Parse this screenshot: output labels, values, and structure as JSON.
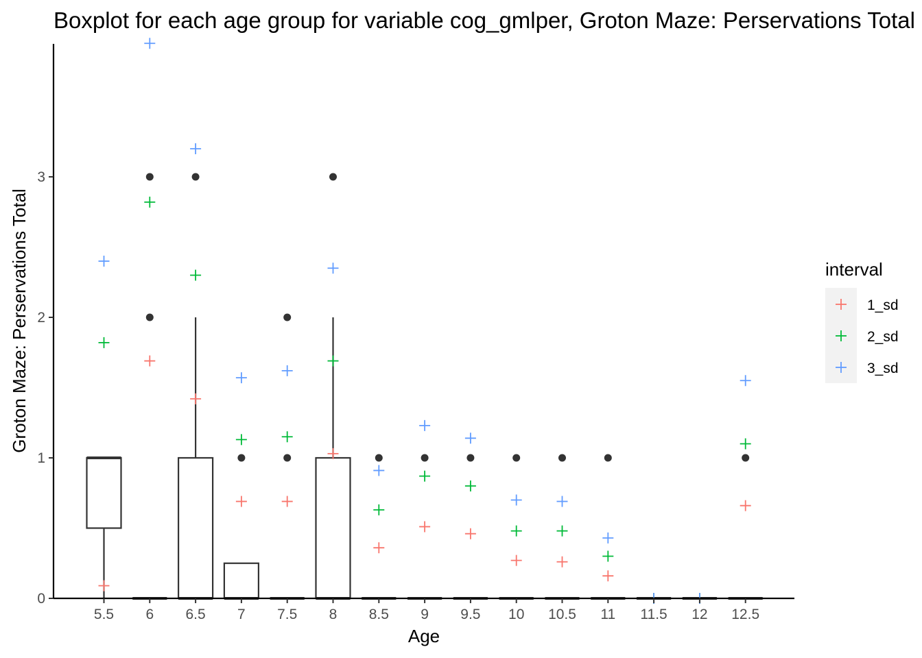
{
  "chart_data": {
    "type": "boxplot",
    "title": "Boxplot for each age group for variable cog_gmlper, Groton Maze: Perservations Total",
    "xlabel": "Age",
    "ylabel": "Groton Maze: Perservations Total",
    "categories": [
      "5.5",
      "6",
      "6.5",
      "7",
      "7.5",
      "8",
      "8.5",
      "9",
      "9.5",
      "10",
      "10.5",
      "11",
      "11.5",
      "12",
      "12.5"
    ],
    "y_ticks": [
      "0",
      "1",
      "2",
      "3"
    ],
    "ylim": [
      0,
      3.95
    ],
    "grid": false,
    "boxes": [
      {
        "category": "5.5",
        "min": 0,
        "q1": 0.5,
        "median": 1,
        "q3": 1,
        "max": 1
      },
      {
        "category": "6",
        "min": 0,
        "q1": 0,
        "median": 0,
        "q3": 0,
        "max": 0
      },
      {
        "category": "6.5",
        "min": 0,
        "q1": 0,
        "median": 0,
        "q3": 1,
        "max": 2
      },
      {
        "category": "7",
        "min": 0,
        "q1": 0,
        "median": 0,
        "q3": 0.25,
        "max": 0.25
      },
      {
        "category": "7.5",
        "min": 0,
        "q1": 0,
        "median": 0,
        "q3": 0,
        "max": 0
      },
      {
        "category": "8",
        "min": 0,
        "q1": 0,
        "median": 0,
        "q3": 1,
        "max": 2
      },
      {
        "category": "8.5",
        "min": 0,
        "q1": 0,
        "median": 0,
        "q3": 0,
        "max": 0
      },
      {
        "category": "9",
        "min": 0,
        "q1": 0,
        "median": 0,
        "q3": 0,
        "max": 0
      },
      {
        "category": "9.5",
        "min": 0,
        "q1": 0,
        "median": 0,
        "q3": 0,
        "max": 0
      },
      {
        "category": "10",
        "min": 0,
        "q1": 0,
        "median": 0,
        "q3": 0,
        "max": 0
      },
      {
        "category": "10.5",
        "min": 0,
        "q1": 0,
        "median": 0,
        "q3": 0,
        "max": 0
      },
      {
        "category": "11",
        "min": 0,
        "q1": 0,
        "median": 0,
        "q3": 0,
        "max": 0
      },
      {
        "category": "11.5",
        "min": 0,
        "q1": 0,
        "median": 0,
        "q3": 0,
        "max": 0
      },
      {
        "category": "12",
        "min": 0,
        "q1": 0,
        "median": 0,
        "q3": 0,
        "max": 0
      },
      {
        "category": "12.5",
        "min": 0,
        "q1": 0,
        "median": 0,
        "q3": 0,
        "max": 0
      }
    ],
    "outliers": [
      {
        "category": "6",
        "y": 3
      },
      {
        "category": "6",
        "y": 2
      },
      {
        "category": "6.5",
        "y": 3
      },
      {
        "category": "7",
        "y": 1
      },
      {
        "category": "7.5",
        "y": 2
      },
      {
        "category": "7.5",
        "y": 1
      },
      {
        "category": "8",
        "y": 3
      },
      {
        "category": "8.5",
        "y": 1
      },
      {
        "category": "9",
        "y": 1
      },
      {
        "category": "9.5",
        "y": 1
      },
      {
        "category": "10",
        "y": 1
      },
      {
        "category": "10.5",
        "y": 1
      },
      {
        "category": "11",
        "y": 1
      },
      {
        "category": "12.5",
        "y": 1
      }
    ],
    "legend": {
      "title": "interval",
      "position": "right",
      "marker": "plus"
    },
    "series": [
      {
        "name": "1_sd",
        "color": "#F8766D",
        "values": [
          0.09,
          1.69,
          1.42,
          0.69,
          0.69,
          1.03,
          0.36,
          0.51,
          0.46,
          0.27,
          0.26,
          0.16,
          0,
          0,
          0.66
        ]
      },
      {
        "name": "2_sd",
        "color": "#00BA38",
        "values": [
          1.82,
          2.82,
          2.3,
          1.13,
          1.15,
          1.69,
          0.63,
          0.87,
          0.8,
          0.48,
          0.48,
          0.3,
          0,
          0,
          1.1
        ]
      },
      {
        "name": "3_sd",
        "color": "#619CFF",
        "values": [
          2.4,
          3.95,
          3.2,
          1.57,
          1.62,
          2.35,
          0.91,
          1.23,
          1.14,
          0.7,
          0.69,
          0.43,
          0,
          0,
          1.55
        ]
      }
    ]
  }
}
